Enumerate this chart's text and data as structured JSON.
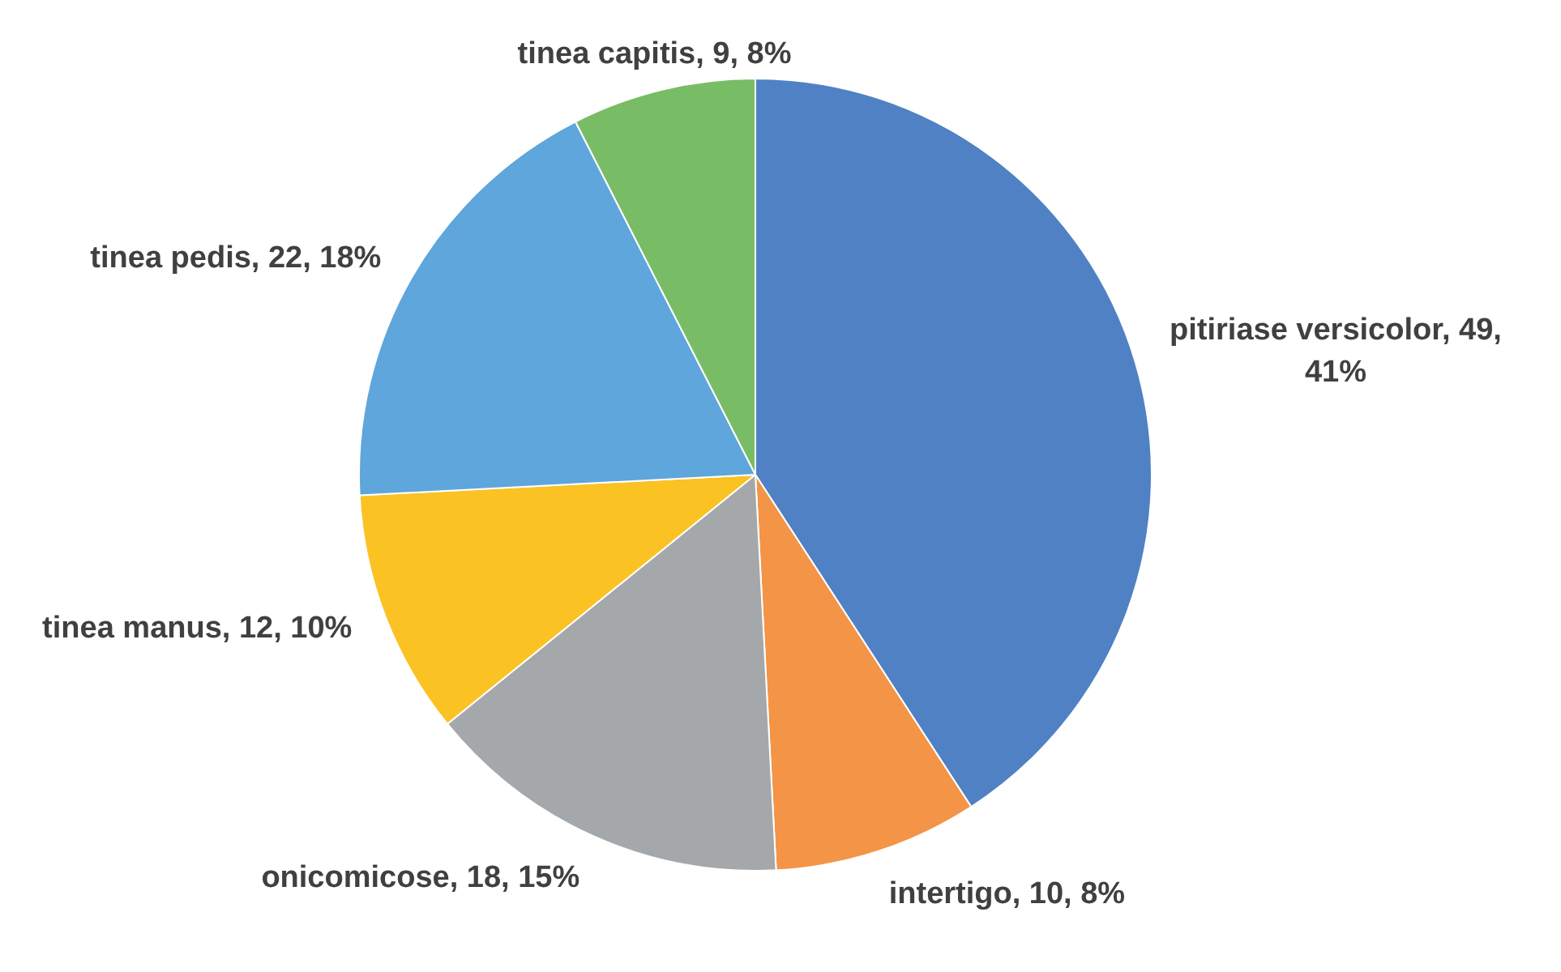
{
  "chart_data": {
    "type": "pie",
    "categories": [
      "pitiriase versicolor",
      "intertigo",
      "onicomicose",
      "tinea manus",
      "tinea pedis",
      "tinea capitis"
    ],
    "values": [
      49,
      10,
      18,
      12,
      22,
      9
    ],
    "colors": [
      "#4f81c4",
      "#f39446",
      "#a5a8aa",
      "#fbc223",
      "#5ea6dc",
      "#78bd66"
    ],
    "value_labels": [
      "49, 41%",
      "10, 8%",
      "18, 15%",
      "12, 10%",
      "22, 18%",
      "9, 8%"
    ],
    "legend": false
  }
}
